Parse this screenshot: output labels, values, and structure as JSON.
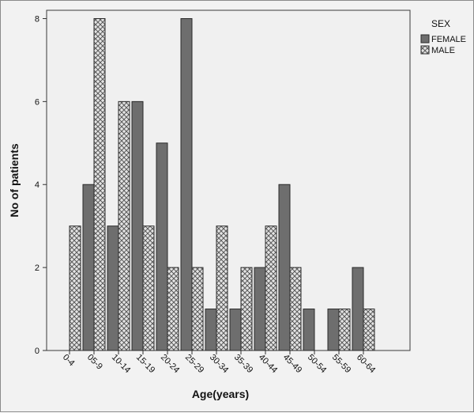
{
  "chart_data": {
    "type": "bar",
    "xlabel": "Age(years)",
    "ylabel": "No of patients",
    "ylim": [
      0,
      8.2
    ],
    "yticks": [
      0,
      2,
      4,
      6,
      8
    ],
    "grid": false,
    "legend": {
      "title": "SEX",
      "placement": "top-right"
    },
    "categories": [
      "0-4",
      "05-9",
      "10-14",
      "15-19",
      "20-24",
      "25-29",
      "30-34",
      "35-39",
      "40-44",
      "45-49",
      "50-54",
      "55-59",
      "60-64"
    ],
    "series": [
      {
        "name": "FEMALE",
        "color": "#6e6e6e",
        "pattern": "solid",
        "values": [
          0,
          4,
          3,
          6,
          5,
          8,
          1,
          1,
          2,
          4,
          1,
          1,
          2
        ]
      },
      {
        "name": "MALE",
        "color": "#d9d9d9",
        "pattern": "crosshatch",
        "values": [
          3,
          8,
          6,
          3,
          2,
          2,
          3,
          2,
          3,
          2,
          0,
          1,
          1
        ]
      }
    ]
  }
}
